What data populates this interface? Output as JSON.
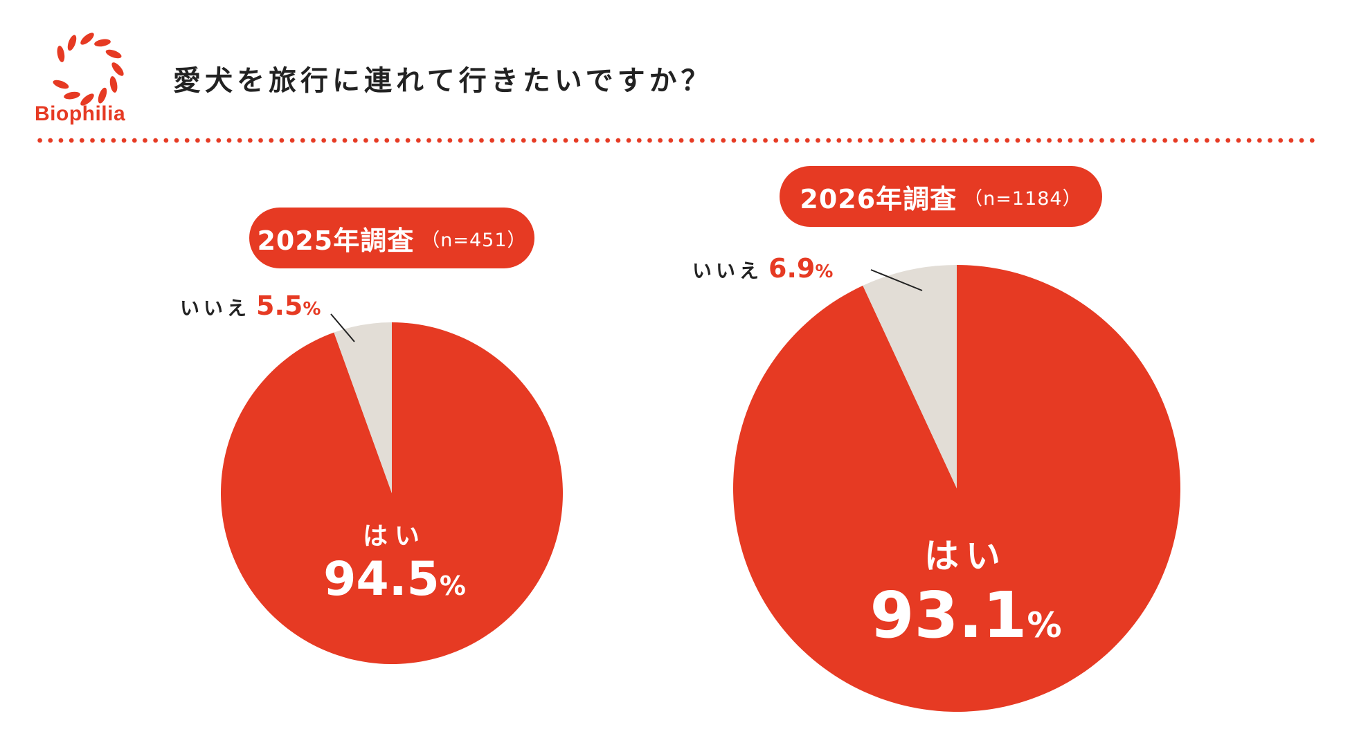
{
  "brand": {
    "name": "Biophilia",
    "icon": "wreath-logo-icon",
    "color": "#e63a23"
  },
  "title": "愛犬を旅行に連れて行きたいですか？",
  "colors": {
    "yes": "#e63a23",
    "no": "#e2ddd6",
    "accent": "#e63a23"
  },
  "chart_data": [
    {
      "type": "pie",
      "title": "2025年調査",
      "n_label": "（n=451）",
      "slices": [
        {
          "label": "はい",
          "value": 94.5,
          "value_label": "94.5",
          "unit": "%",
          "color": "#e63a23"
        },
        {
          "label": "いいえ",
          "value": 5.5,
          "value_label": "5.5",
          "unit": "%",
          "color": "#e2ddd6"
        }
      ]
    },
    {
      "type": "pie",
      "title": "2026年調査",
      "n_label": "（n=1184）",
      "slices": [
        {
          "label": "はい",
          "value": 93.1,
          "value_label": "93.1",
          "unit": "%",
          "color": "#e63a23"
        },
        {
          "label": "いいえ",
          "value": 6.9,
          "value_label": "6.9",
          "unit": "%",
          "color": "#e2ddd6"
        }
      ]
    }
  ]
}
